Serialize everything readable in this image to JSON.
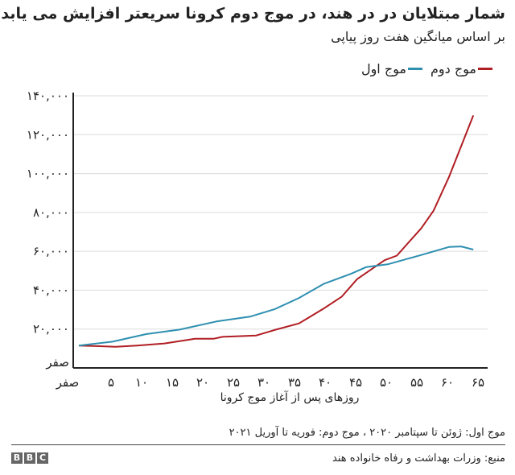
{
  "chart_data": {
    "type": "line",
    "title": "شمار مبتلایان در در هند، در موج دوم کرونا سریعتر افزایش می یابد",
    "subtitle": "بر اساس میانگین هفت روز پیاپی",
    "xlabel": "روزهای پس از آغاز موج کرونا",
    "ylabel": "",
    "xlim": [
      0,
      66
    ],
    "ylim": [
      0,
      140000
    ],
    "grid": true,
    "legend_position": "top-right",
    "x_ticks": [
      {
        "value": 0,
        "label": "صفر"
      },
      {
        "value": 5,
        "label": "۵"
      },
      {
        "value": 10,
        "label": "۱۰"
      },
      {
        "value": 15,
        "label": "۱۵"
      },
      {
        "value": 20,
        "label": "۲۰"
      },
      {
        "value": 25,
        "label": "۲۵"
      },
      {
        "value": 30,
        "label": "۳۰"
      },
      {
        "value": 35,
        "label": "۳۵"
      },
      {
        "value": 40,
        "label": "۴۰"
      },
      {
        "value": 45,
        "label": "۴۵"
      },
      {
        "value": 50,
        "label": "۵۰"
      },
      {
        "value": 55,
        "label": "۵۵"
      },
      {
        "value": 60,
        "label": "۶۰"
      },
      {
        "value": 65,
        "label": "۶۵"
      }
    ],
    "y_ticks": [
      {
        "value": 0,
        "label": "صفر"
      },
      {
        "value": 20000,
        "label": "۲۰,۰۰۰"
      },
      {
        "value": 40000,
        "label": "۴۰,۰۰۰"
      },
      {
        "value": 60000,
        "label": "۶۰,۰۰۰"
      },
      {
        "value": 80000,
        "label": "۸۰,۰۰۰"
      },
      {
        "value": 100000,
        "label": "۱۰۰,۰۰۰"
      },
      {
        "value": 120000,
        "label": "۱۲۰,۰۰۰"
      },
      {
        "value": 140000,
        "label": "۱۴۰,۰۰۰"
      }
    ],
    "series": [
      {
        "name": "موج دوم",
        "color": "#b01e23",
        "x": [
          0,
          6,
          9.5,
          14,
          19,
          22,
          23.5,
          29,
          32,
          36,
          40,
          43,
          45.5,
          50,
          52,
          56,
          58,
          60.5,
          64.5
        ],
        "y": [
          11500,
          10900,
          11500,
          12600,
          15000,
          15000,
          16000,
          16700,
          19500,
          22900,
          30500,
          36700,
          45700,
          55400,
          57800,
          71900,
          80900,
          98100,
          129900
        ]
      },
      {
        "name": "موج اول",
        "color": "#2e8fb0",
        "x": [
          0,
          5.5,
          11,
          16.5,
          22.5,
          28,
          32,
          36,
          40,
          44.5,
          47,
          50.5,
          56,
          60.5,
          62.5,
          64.5
        ],
        "y": [
          11500,
          13500,
          17400,
          19700,
          23900,
          26400,
          30200,
          36000,
          43200,
          48400,
          51900,
          53300,
          58100,
          62200,
          62500,
          60900
        ]
      }
    ]
  },
  "footer": {
    "note": "موج اول:  ژوئن تا سپتامبر ۲۰۲۰ ، موج دوم:  فوریه تا آوریل ۲۰۲۱",
    "source": "منبع: وزرات بهداشت و رفاه خانواده هند",
    "logo": [
      "B",
      "B",
      "C"
    ]
  }
}
